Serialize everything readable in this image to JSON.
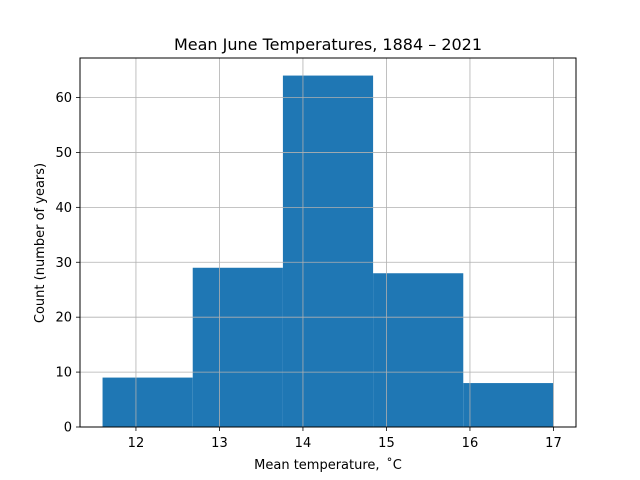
{
  "chart_data": {
    "type": "bar",
    "subtype": "histogram",
    "title": "Mean June Temperatures, 1884 – 2021",
    "xlabel": "Mean temperature,  ˚C",
    "ylabel": "Count (number of  years)",
    "bins": [
      {
        "start": 11.6,
        "end": 12.68,
        "count": 9
      },
      {
        "start": 12.68,
        "end": 13.76,
        "count": 29
      },
      {
        "start": 13.76,
        "end": 14.84,
        "count": 64
      },
      {
        "start": 14.84,
        "end": 15.92,
        "count": 28
      },
      {
        "start": 15.92,
        "end": 17.0,
        "count": 8
      }
    ],
    "xlim": [
      11.33,
      17.27
    ],
    "ylim": [
      0,
      67.2
    ],
    "xticks": [
      12,
      13,
      14,
      15,
      16,
      17
    ],
    "yticks": [
      0,
      10,
      20,
      30,
      40,
      50,
      60
    ],
    "grid": true,
    "bar_color": "#1f77b4",
    "grid_color": "#b0b0b0"
  }
}
